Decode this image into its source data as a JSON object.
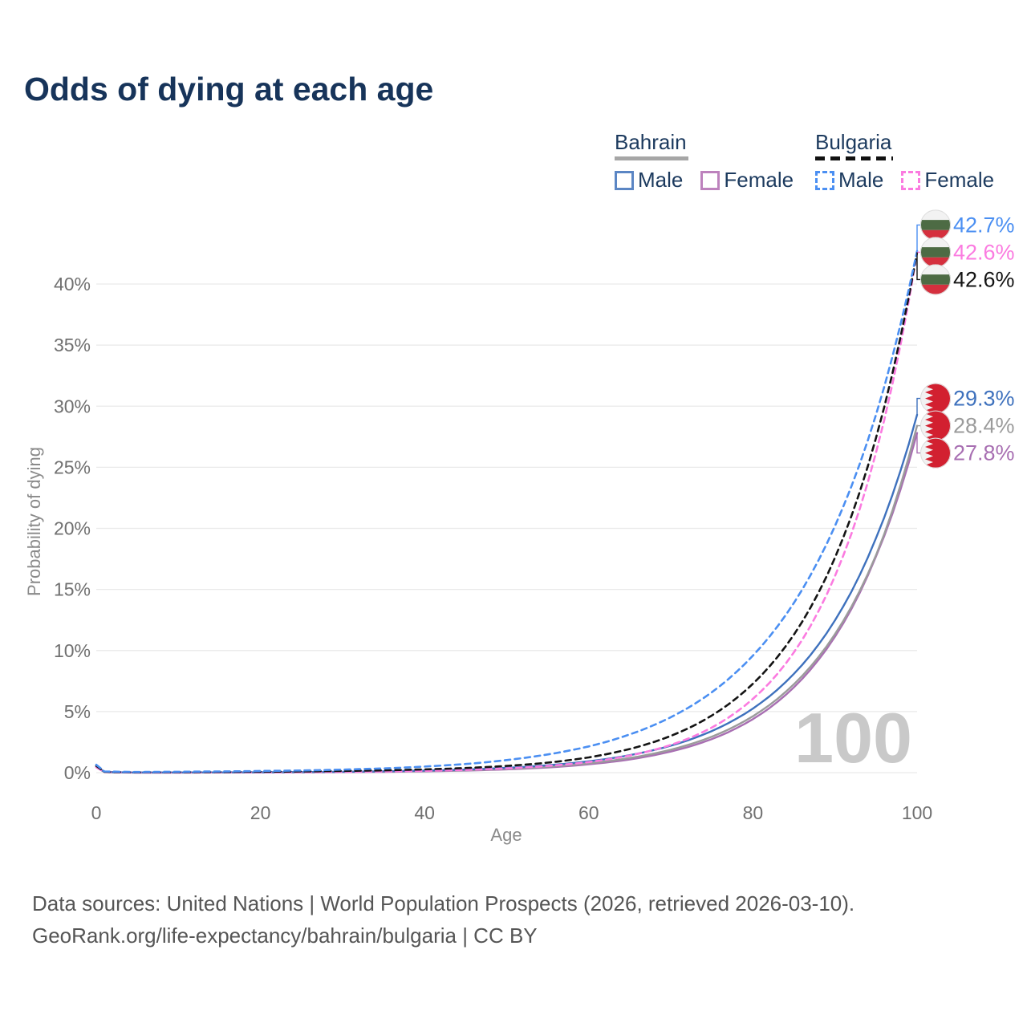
{
  "title": "Odds of dying at each age",
  "legend": {
    "bahrain": {
      "title": "Bahrain",
      "male_label": "Male",
      "female_label": "Female",
      "line_style": "solid"
    },
    "bulgaria": {
      "title": "Bulgaria",
      "male_label": "Male",
      "female_label": "Female",
      "line_style": "dashed"
    }
  },
  "footer": {
    "line1": "Data sources: United Nations | World Population Prospects (2026, retrieved 2026-03-10).",
    "line2": "GeoRank.org/life-expectancy/bahrain/bulgaria | CC BY"
  },
  "colors": {
    "title_text": "#17345a",
    "legend_text": "#1c3a5e",
    "axis_text": "#707070",
    "axis_title_text": "#8a8a8a",
    "gridline": "#e9e9e9",
    "watermark": "#c9c9c9",
    "bahrain_male": "#3e71bd",
    "bahrain_both": "#9b9b9b",
    "bahrain_female": "#a86fb2",
    "bulgaria_male": "#4b8ff2",
    "bulgaria_both": "#141414",
    "bulgaria_female": "#fb7be0",
    "flag_bulgaria_green": "#4d6b44",
    "flag_bulgaria_red": "#d5303e",
    "flag_bahrain_red": "#d22030"
  },
  "chart_data": {
    "type": "line",
    "title": "Odds of dying at each age",
    "xlabel": "Age",
    "ylabel": "Probability of dying",
    "xlim": [
      0,
      100
    ],
    "ylim": [
      0,
      45
    ],
    "x_ticks": [
      0,
      20,
      40,
      60,
      80,
      100
    ],
    "y_ticks": [
      0,
      5,
      10,
      15,
      20,
      25,
      30,
      35,
      40
    ],
    "y_tick_suffix": "%",
    "grid": "horizontal-only",
    "legend_position": "top-right",
    "age_counter": "100",
    "sample_ages": [
      0,
      1,
      5,
      10,
      15,
      20,
      25,
      30,
      35,
      40,
      45,
      50,
      55,
      60,
      65,
      70,
      75,
      80,
      85,
      90,
      95,
      100
    ],
    "series": [
      {
        "id": "bahrain_female",
        "country": "Bahrain",
        "sex": "Female",
        "line": "solid",
        "color": "#a86fb2",
        "flag": "bahrain",
        "end_label": "27.8%",
        "values": [
          0.44,
          0.05,
          0.006,
          0.008,
          0.012,
          0.018,
          0.028,
          0.044,
          0.068,
          0.107,
          0.17,
          0.269,
          0.427,
          0.68,
          1.08,
          1.73,
          2.75,
          4.38,
          6.99,
          11.13,
          17.7,
          27.8
        ]
      },
      {
        "id": "bahrain_both",
        "country": "Bahrain",
        "sex": "Both",
        "line": "solid",
        "color": "#9b9b9b",
        "flag": "bahrain",
        "end_label": "28.4%",
        "values": [
          0.5,
          0.055,
          0.008,
          0.011,
          0.016,
          0.024,
          0.036,
          0.055,
          0.084,
          0.13,
          0.201,
          0.313,
          0.49,
          0.77,
          1.2,
          1.88,
          2.95,
          4.62,
          7.24,
          11.34,
          17.8,
          28.4
        ]
      },
      {
        "id": "bahrain_male",
        "country": "Bahrain",
        "sex": "Male",
        "line": "solid",
        "color": "#3e71bd",
        "flag": "bahrain",
        "end_label": "29.3%",
        "values": [
          0.56,
          0.06,
          0.01,
          0.014,
          0.021,
          0.031,
          0.047,
          0.072,
          0.11,
          0.168,
          0.257,
          0.394,
          0.605,
          0.93,
          1.43,
          2.21,
          3.41,
          5.25,
          8.09,
          12.47,
          19.2,
          29.3
        ]
      },
      {
        "id": "bulgaria_female",
        "country": "Bulgaria",
        "sex": "Female",
        "line": "dashed",
        "color": "#fb7be0",
        "flag": "bulgaria",
        "end_label": "42.6%",
        "values": [
          0.45,
          0.055,
          0.012,
          0.016,
          0.022,
          0.031,
          0.045,
          0.066,
          0.098,
          0.148,
          0.226,
          0.35,
          0.55,
          0.87,
          1.4,
          2.27,
          3.7,
          6.04,
          9.85,
          16.1,
          26.2,
          42.6
        ]
      },
      {
        "id": "bulgaria_both",
        "country": "Bulgaria",
        "sex": "Both",
        "line": "dashed",
        "color": "#141414",
        "flag": "bulgaria",
        "end_label": "42.6%",
        "values": [
          0.55,
          0.07,
          0.028,
          0.038,
          0.052,
          0.072,
          0.1,
          0.14,
          0.19,
          0.27,
          0.38,
          0.55,
          0.82,
          1.25,
          1.94,
          3.01,
          4.68,
          7.28,
          11.3,
          17.6,
          27.4,
          42.6
        ]
      },
      {
        "id": "bulgaria_male",
        "country": "Bulgaria",
        "sex": "Male",
        "line": "dashed",
        "color": "#4b8ff2",
        "flag": "bulgaria",
        "end_label": "42.7%",
        "values": [
          0.65,
          0.1,
          0.055,
          0.075,
          0.1,
          0.135,
          0.18,
          0.25,
          0.35,
          0.5,
          0.71,
          1.03,
          1.49,
          2.15,
          3.13,
          4.54,
          6.59,
          9.58,
          13.9,
          20.2,
          29.3,
          42.7
        ]
      }
    ]
  }
}
